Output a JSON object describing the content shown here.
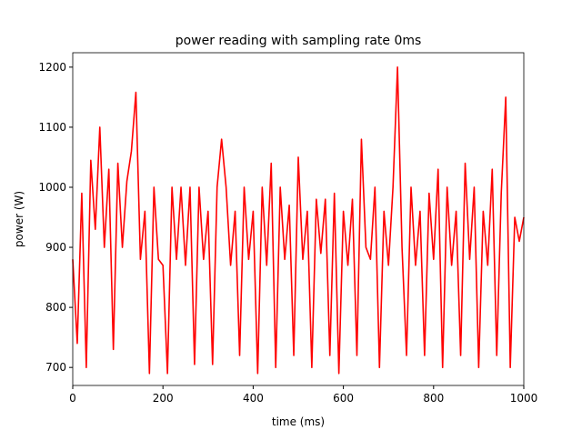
{
  "chart_data": {
    "type": "line",
    "title": "power reading with sampling rate 0ms",
    "x_label": "time (ms)",
    "y_label": "power (W)",
    "x": [
      0,
      10,
      20,
      30,
      40,
      50,
      60,
      70,
      80,
      90,
      100,
      110,
      120,
      130,
      140,
      150,
      160,
      170,
      180,
      190,
      200,
      210,
      220,
      230,
      240,
      250,
      260,
      270,
      280,
      290,
      300,
      310,
      320,
      330,
      340,
      350,
      360,
      370,
      380,
      390,
      400,
      410,
      420,
      430,
      440,
      450,
      460,
      470,
      480,
      490,
      500,
      510,
      520,
      530,
      540,
      550,
      560,
      570,
      580,
      590,
      600,
      610,
      620,
      630,
      640,
      650,
      660,
      670,
      680,
      690,
      700,
      710,
      720,
      730,
      740,
      750,
      760,
      770,
      780,
      790,
      800,
      810,
      820,
      830,
      840,
      850,
      860,
      870,
      880,
      890,
      900,
      910,
      920,
      930,
      940,
      950,
      960,
      970,
      980,
      990,
      1000
    ],
    "series": [
      {
        "color": "#ff0000",
        "values": [
          880,
          740,
          990,
          700,
          1045,
          930,
          1100,
          900,
          1030,
          730,
          1040,
          900,
          1010,
          1060,
          1158,
          880,
          960,
          690,
          1000,
          880,
          870,
          690,
          1000,
          880,
          1000,
          870,
          1000,
          705,
          1000,
          880,
          960,
          705,
          1000,
          1080,
          1000,
          870,
          960,
          720,
          1000,
          880,
          960,
          690,
          1000,
          870,
          1040,
          700,
          1000,
          880,
          970,
          720,
          1050,
          880,
          960,
          700,
          980,
          890,
          980,
          720,
          990,
          690,
          960,
          870,
          980,
          720,
          1080,
          900,
          880,
          1000,
          700,
          960,
          870,
          1000,
          1200,
          900,
          720,
          1000,
          870,
          960,
          720,
          990,
          880,
          1030,
          700,
          1000,
          870,
          960,
          720,
          1040,
          880,
          1000,
          700,
          960,
          870,
          1030,
          720,
          990,
          1150,
          700,
          950,
          910,
          950
        ]
      }
    ],
    "xlim": [
      0,
      1000
    ],
    "xticks": [
      0,
      200,
      400,
      600,
      800,
      1000
    ],
    "ylim": [
      670,
      1224
    ],
    "yticks": [
      700,
      800,
      900,
      1000,
      1100,
      1200
    ]
  }
}
